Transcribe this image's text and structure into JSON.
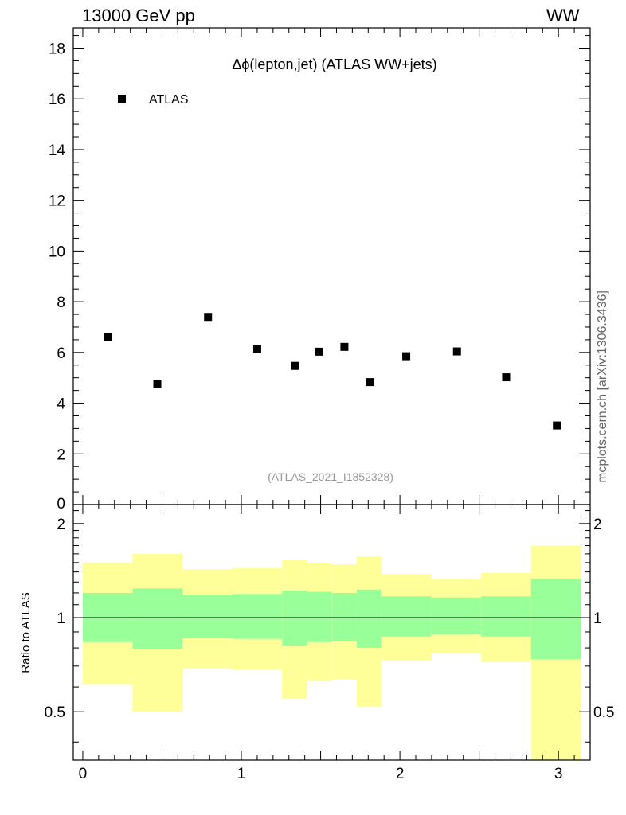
{
  "header": {
    "left": "13000 GeV pp",
    "right": "WW"
  },
  "side_note": "mcplots.cern.ch [arXiv:1306.3436]",
  "colors": {
    "data": "#000000",
    "band_inner": "#99ff99",
    "band_outer": "#ffff99",
    "watermark": "#999999"
  },
  "chart_data": [
    {
      "type": "scatter",
      "title": "Δϕ(lepton,jet) (ATLAS WW+jets)",
      "watermark": "(ATLAS_2021_I1852328)",
      "xlabel": "",
      "ylabel": "",
      "xlim": [
        -0.06,
        3.2
      ],
      "ylim": [
        0,
        18.8
      ],
      "yticks": [
        0,
        2,
        4,
        6,
        8,
        10,
        12,
        14,
        16,
        18
      ],
      "ytick_labels": [
        "0",
        "2",
        "4",
        "6",
        "8",
        "10",
        "12",
        "14",
        "16",
        "18"
      ],
      "legend": {
        "position": "top-left",
        "entries": [
          "ATLAS"
        ]
      },
      "series": [
        {
          "name": "ATLAS",
          "x": [
            0.16,
            0.47,
            0.79,
            1.1,
            1.34,
            1.49,
            1.65,
            1.81,
            2.04,
            2.36,
            2.67,
            2.99
          ],
          "y": [
            6.6,
            4.77,
            7.4,
            6.15,
            5.47,
            6.03,
            6.22,
            4.83,
            5.85,
            6.04,
            5.02,
            3.12
          ]
        }
      ]
    },
    {
      "type": "area",
      "ylabel": "Ratio to ATLAS",
      "xlim": [
        -0.06,
        3.2
      ],
      "ylim": [
        0.35,
        2.3
      ],
      "xticks": [
        0,
        1,
        2,
        3
      ],
      "xtick_labels": [
        "0",
        "1",
        "2",
        "3"
      ],
      "yticks": [
        0.5,
        1,
        2
      ],
      "ytick_labels": [
        "0.5",
        "1",
        "2"
      ],
      "reference_line": 1,
      "bins": [
        {
          "x0": 0.0,
          "x1": 0.314,
          "inner": [
            0.835,
            1.2
          ],
          "outer": [
            0.61,
            1.5
          ]
        },
        {
          "x0": 0.314,
          "x1": 0.628,
          "inner": [
            0.795,
            1.24
          ],
          "outer": [
            0.5,
            1.6
          ]
        },
        {
          "x0": 0.628,
          "x1": 0.942,
          "inner": [
            0.86,
            1.18
          ],
          "outer": [
            0.69,
            1.43
          ]
        },
        {
          "x0": 0.942,
          "x1": 1.257,
          "inner": [
            0.855,
            1.19
          ],
          "outer": [
            0.68,
            1.44
          ]
        },
        {
          "x0": 1.257,
          "x1": 1.414,
          "inner": [
            0.81,
            1.22
          ],
          "outer": [
            0.55,
            1.53
          ]
        },
        {
          "x0": 1.414,
          "x1": 1.571,
          "inner": [
            0.835,
            1.21
          ],
          "outer": [
            0.625,
            1.49
          ]
        },
        {
          "x0": 1.571,
          "x1": 1.728,
          "inner": [
            0.84,
            1.2
          ],
          "outer": [
            0.635,
            1.48
          ]
        },
        {
          "x0": 1.728,
          "x1": 1.885,
          "inner": [
            0.8,
            1.23
          ],
          "outer": [
            0.52,
            1.57
          ]
        },
        {
          "x0": 1.885,
          "x1": 2.199,
          "inner": [
            0.87,
            1.17
          ],
          "outer": [
            0.73,
            1.38
          ]
        },
        {
          "x0": 2.199,
          "x1": 2.513,
          "inner": [
            0.885,
            1.16
          ],
          "outer": [
            0.77,
            1.33
          ]
        },
        {
          "x0": 2.513,
          "x1": 2.827,
          "inner": [
            0.87,
            1.17
          ],
          "outer": [
            0.72,
            1.39
          ]
        },
        {
          "x0": 2.827,
          "x1": 3.142,
          "inner": [
            0.735,
            1.33
          ],
          "outer": [
            0.35,
            1.7
          ]
        }
      ]
    }
  ]
}
